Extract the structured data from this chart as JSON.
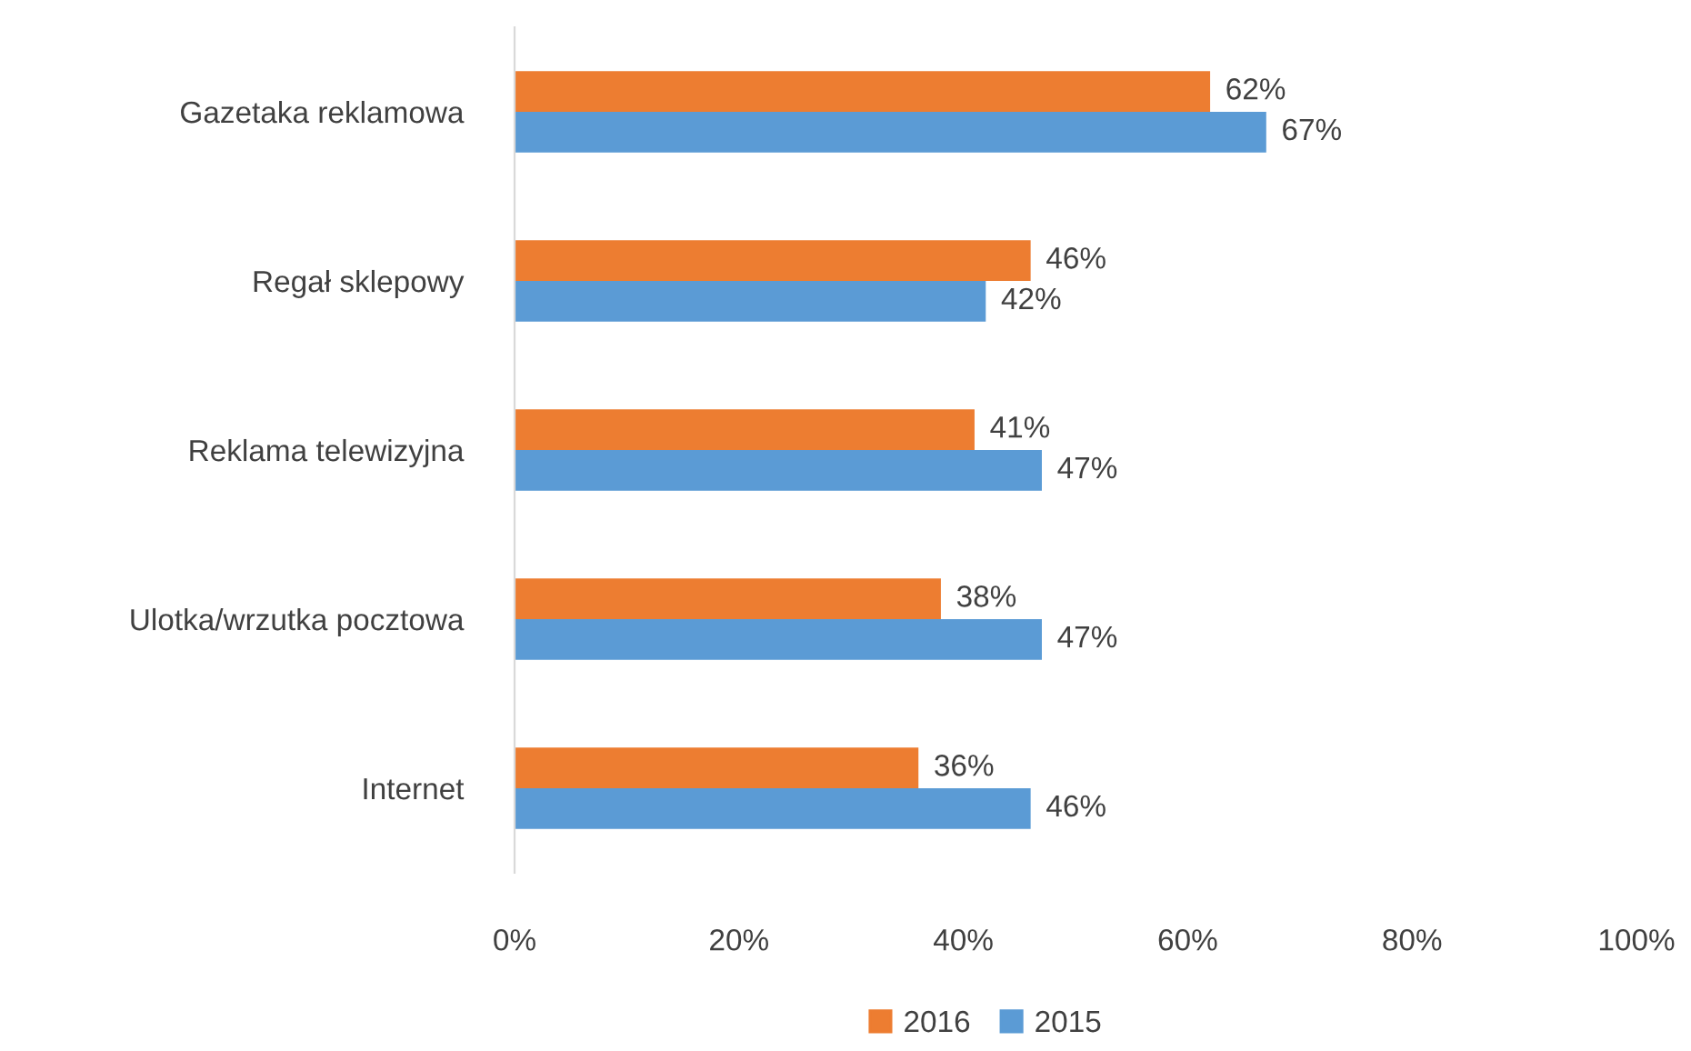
{
  "chart_data": {
    "type": "bar",
    "orientation": "horizontal",
    "categories": [
      "Gazetaka reklamowa",
      "Regał sklepowy",
      "Reklama telewizyjna",
      "Ulotka/wrzutka pocztowa",
      "Internet"
    ],
    "series": [
      {
        "name": "2016",
        "color": "#ed7d31",
        "values": [
          62,
          46,
          41,
          38,
          36
        ],
        "value_labels": [
          "62%",
          "46%",
          "41%",
          "38%",
          "36%"
        ]
      },
      {
        "name": "2015",
        "color": "#5b9bd5",
        "values": [
          67,
          42,
          47,
          47,
          46
        ],
        "value_labels": [
          "67%",
          "42%",
          "47%",
          "47%",
          "46%"
        ]
      }
    ],
    "xlim": [
      0,
      100
    ],
    "xticks": [
      {
        "value": 0,
        "label": "0%"
      },
      {
        "value": 20,
        "label": "20%"
      },
      {
        "value": 40,
        "label": "40%"
      },
      {
        "value": 60,
        "label": "60%"
      },
      {
        "value": 80,
        "label": "80%"
      },
      {
        "value": 100,
        "label": "100%"
      }
    ],
    "grid": false,
    "legend": "bottom"
  }
}
